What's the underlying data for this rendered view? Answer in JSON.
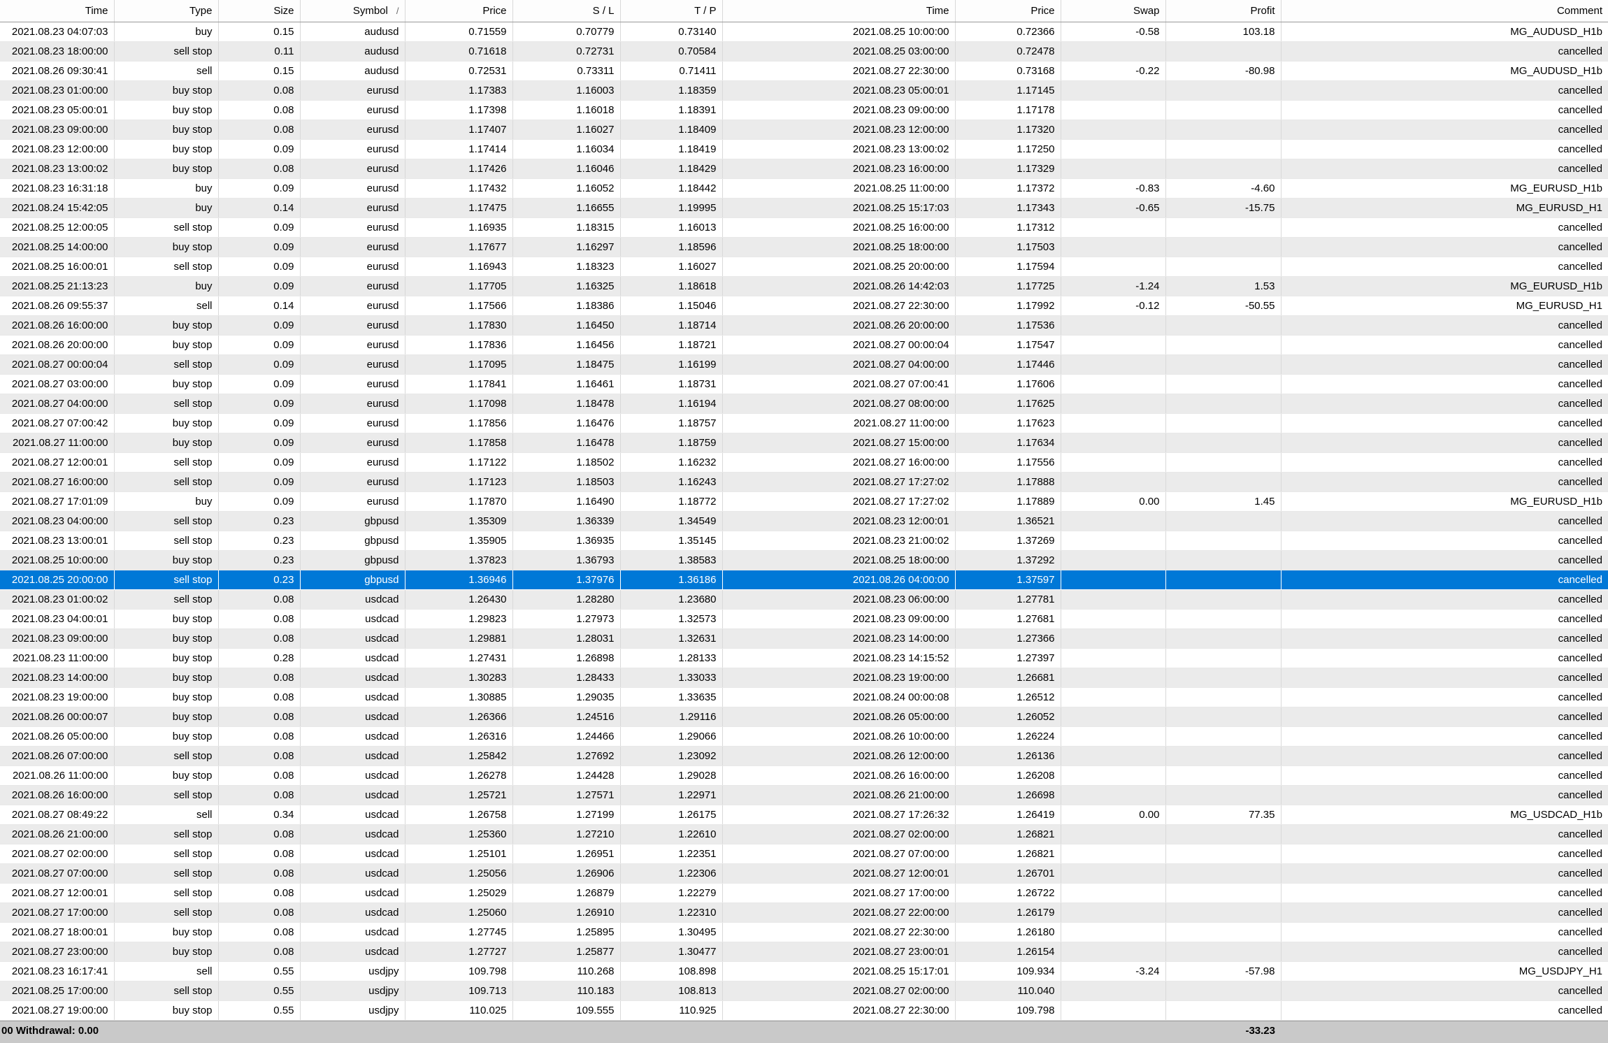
{
  "colors": {
    "selection_bg": "#0078d7",
    "stripe_bg": "#ebebeb",
    "statusbar_bg": "#c9c9c9"
  },
  "table": {
    "columns": [
      "Time",
      "Type",
      "Size",
      "Symbol",
      "Price",
      "S / L",
      "T / P",
      "Time",
      "Price",
      "Swap",
      "Profit",
      "Comment"
    ],
    "sort": {
      "column_index": 3,
      "icon": "/"
    },
    "selected_index": 28,
    "rows": [
      [
        "2021.08.23 04:07:03",
        "buy",
        "0.15",
        "audusd",
        "0.71559",
        "0.70779",
        "0.73140",
        "2021.08.25 10:00:00",
        "0.72366",
        "-0.58",
        "103.18",
        "MG_AUDUSD_H1b"
      ],
      [
        "2021.08.23 18:00:00",
        "sell stop",
        "0.11",
        "audusd",
        "0.71618",
        "0.72731",
        "0.70584",
        "2021.08.25 03:00:00",
        "0.72478",
        "",
        "",
        "cancelled"
      ],
      [
        "2021.08.26 09:30:41",
        "sell",
        "0.15",
        "audusd",
        "0.72531",
        "0.73311",
        "0.71411",
        "2021.08.27 22:30:00",
        "0.73168",
        "-0.22",
        "-80.98",
        "MG_AUDUSD_H1b"
      ],
      [
        "2021.08.23 01:00:00",
        "buy stop",
        "0.08",
        "eurusd",
        "1.17383",
        "1.16003",
        "1.18359",
        "2021.08.23 05:00:01",
        "1.17145",
        "",
        "",
        "cancelled"
      ],
      [
        "2021.08.23 05:00:01",
        "buy stop",
        "0.08",
        "eurusd",
        "1.17398",
        "1.16018",
        "1.18391",
        "2021.08.23 09:00:00",
        "1.17178",
        "",
        "",
        "cancelled"
      ],
      [
        "2021.08.23 09:00:00",
        "buy stop",
        "0.08",
        "eurusd",
        "1.17407",
        "1.16027",
        "1.18409",
        "2021.08.23 12:00:00",
        "1.17320",
        "",
        "",
        "cancelled"
      ],
      [
        "2021.08.23 12:00:00",
        "buy stop",
        "0.09",
        "eurusd",
        "1.17414",
        "1.16034",
        "1.18419",
        "2021.08.23 13:00:02",
        "1.17250",
        "",
        "",
        "cancelled"
      ],
      [
        "2021.08.23 13:00:02",
        "buy stop",
        "0.08",
        "eurusd",
        "1.17426",
        "1.16046",
        "1.18429",
        "2021.08.23 16:00:00",
        "1.17329",
        "",
        "",
        "cancelled"
      ],
      [
        "2021.08.23 16:31:18",
        "buy",
        "0.09",
        "eurusd",
        "1.17432",
        "1.16052",
        "1.18442",
        "2021.08.25 11:00:00",
        "1.17372",
        "-0.83",
        "-4.60",
        "MG_EURUSD_H1b"
      ],
      [
        "2021.08.24 15:42:05",
        "buy",
        "0.14",
        "eurusd",
        "1.17475",
        "1.16655",
        "1.19995",
        "2021.08.25 15:17:03",
        "1.17343",
        "-0.65",
        "-15.75",
        "MG_EURUSD_H1"
      ],
      [
        "2021.08.25 12:00:05",
        "sell stop",
        "0.09",
        "eurusd",
        "1.16935",
        "1.18315",
        "1.16013",
        "2021.08.25 16:00:00",
        "1.17312",
        "",
        "",
        "cancelled"
      ],
      [
        "2021.08.25 14:00:00",
        "buy stop",
        "0.09",
        "eurusd",
        "1.17677",
        "1.16297",
        "1.18596",
        "2021.08.25 18:00:00",
        "1.17503",
        "",
        "",
        "cancelled"
      ],
      [
        "2021.08.25 16:00:01",
        "sell stop",
        "0.09",
        "eurusd",
        "1.16943",
        "1.18323",
        "1.16027",
        "2021.08.25 20:00:00",
        "1.17594",
        "",
        "",
        "cancelled"
      ],
      [
        "2021.08.25 21:13:23",
        "buy",
        "0.09",
        "eurusd",
        "1.17705",
        "1.16325",
        "1.18618",
        "2021.08.26 14:42:03",
        "1.17725",
        "-1.24",
        "1.53",
        "MG_EURUSD_H1b"
      ],
      [
        "2021.08.26 09:55:37",
        "sell",
        "0.14",
        "eurusd",
        "1.17566",
        "1.18386",
        "1.15046",
        "2021.08.27 22:30:00",
        "1.17992",
        "-0.12",
        "-50.55",
        "MG_EURUSD_H1"
      ],
      [
        "2021.08.26 16:00:00",
        "buy stop",
        "0.09",
        "eurusd",
        "1.17830",
        "1.16450",
        "1.18714",
        "2021.08.26 20:00:00",
        "1.17536",
        "",
        "",
        "cancelled"
      ],
      [
        "2021.08.26 20:00:00",
        "buy stop",
        "0.09",
        "eurusd",
        "1.17836",
        "1.16456",
        "1.18721",
        "2021.08.27 00:00:04",
        "1.17547",
        "",
        "",
        "cancelled"
      ],
      [
        "2021.08.27 00:00:04",
        "sell stop",
        "0.09",
        "eurusd",
        "1.17095",
        "1.18475",
        "1.16199",
        "2021.08.27 04:00:00",
        "1.17446",
        "",
        "",
        "cancelled"
      ],
      [
        "2021.08.27 03:00:00",
        "buy stop",
        "0.09",
        "eurusd",
        "1.17841",
        "1.16461",
        "1.18731",
        "2021.08.27 07:00:41",
        "1.17606",
        "",
        "",
        "cancelled"
      ],
      [
        "2021.08.27 04:00:00",
        "sell stop",
        "0.09",
        "eurusd",
        "1.17098",
        "1.18478",
        "1.16194",
        "2021.08.27 08:00:00",
        "1.17625",
        "",
        "",
        "cancelled"
      ],
      [
        "2021.08.27 07:00:42",
        "buy stop",
        "0.09",
        "eurusd",
        "1.17856",
        "1.16476",
        "1.18757",
        "2021.08.27 11:00:00",
        "1.17623",
        "",
        "",
        "cancelled"
      ],
      [
        "2021.08.27 11:00:00",
        "buy stop",
        "0.09",
        "eurusd",
        "1.17858",
        "1.16478",
        "1.18759",
        "2021.08.27 15:00:00",
        "1.17634",
        "",
        "",
        "cancelled"
      ],
      [
        "2021.08.27 12:00:01",
        "sell stop",
        "0.09",
        "eurusd",
        "1.17122",
        "1.18502",
        "1.16232",
        "2021.08.27 16:00:00",
        "1.17556",
        "",
        "",
        "cancelled"
      ],
      [
        "2021.08.27 16:00:00",
        "sell stop",
        "0.09",
        "eurusd",
        "1.17123",
        "1.18503",
        "1.16243",
        "2021.08.27 17:27:02",
        "1.17888",
        "",
        "",
        "cancelled"
      ],
      [
        "2021.08.27 17:01:09",
        "buy",
        "0.09",
        "eurusd",
        "1.17870",
        "1.16490",
        "1.18772",
        "2021.08.27 17:27:02",
        "1.17889",
        "0.00",
        "1.45",
        "MG_EURUSD_H1b"
      ],
      [
        "2021.08.23 04:00:00",
        "sell stop",
        "0.23",
        "gbpusd",
        "1.35309",
        "1.36339",
        "1.34549",
        "2021.08.23 12:00:01",
        "1.36521",
        "",
        "",
        "cancelled"
      ],
      [
        "2021.08.23 13:00:01",
        "sell stop",
        "0.23",
        "gbpusd",
        "1.35905",
        "1.36935",
        "1.35145",
        "2021.08.23 21:00:02",
        "1.37269",
        "",
        "",
        "cancelled"
      ],
      [
        "2021.08.25 10:00:00",
        "buy stop",
        "0.23",
        "gbpusd",
        "1.37823",
        "1.36793",
        "1.38583",
        "2021.08.25 18:00:00",
        "1.37292",
        "",
        "",
        "cancelled"
      ],
      [
        "2021.08.25 20:00:00",
        "sell stop",
        "0.23",
        "gbpusd",
        "1.36946",
        "1.37976",
        "1.36186",
        "2021.08.26 04:00:00",
        "1.37597",
        "",
        "",
        "cancelled"
      ],
      [
        "2021.08.23 01:00:02",
        "sell stop",
        "0.08",
        "usdcad",
        "1.26430",
        "1.28280",
        "1.23680",
        "2021.08.23 06:00:00",
        "1.27781",
        "",
        "",
        "cancelled"
      ],
      [
        "2021.08.23 04:00:01",
        "buy stop",
        "0.08",
        "usdcad",
        "1.29823",
        "1.27973",
        "1.32573",
        "2021.08.23 09:00:00",
        "1.27681",
        "",
        "",
        "cancelled"
      ],
      [
        "2021.08.23 09:00:00",
        "buy stop",
        "0.08",
        "usdcad",
        "1.29881",
        "1.28031",
        "1.32631",
        "2021.08.23 14:00:00",
        "1.27366",
        "",
        "",
        "cancelled"
      ],
      [
        "2021.08.23 11:00:00",
        "buy stop",
        "0.28",
        "usdcad",
        "1.27431",
        "1.26898",
        "1.28133",
        "2021.08.23 14:15:52",
        "1.27397",
        "",
        "",
        "cancelled"
      ],
      [
        "2021.08.23 14:00:00",
        "buy stop",
        "0.08",
        "usdcad",
        "1.30283",
        "1.28433",
        "1.33033",
        "2021.08.23 19:00:00",
        "1.26681",
        "",
        "",
        "cancelled"
      ],
      [
        "2021.08.23 19:00:00",
        "buy stop",
        "0.08",
        "usdcad",
        "1.30885",
        "1.29035",
        "1.33635",
        "2021.08.24 00:00:08",
        "1.26512",
        "",
        "",
        "cancelled"
      ],
      [
        "2021.08.26 00:00:07",
        "buy stop",
        "0.08",
        "usdcad",
        "1.26366",
        "1.24516",
        "1.29116",
        "2021.08.26 05:00:00",
        "1.26052",
        "",
        "",
        "cancelled"
      ],
      [
        "2021.08.26 05:00:00",
        "buy stop",
        "0.08",
        "usdcad",
        "1.26316",
        "1.24466",
        "1.29066",
        "2021.08.26 10:00:00",
        "1.26224",
        "",
        "",
        "cancelled"
      ],
      [
        "2021.08.26 07:00:00",
        "sell stop",
        "0.08",
        "usdcad",
        "1.25842",
        "1.27692",
        "1.23092",
        "2021.08.26 12:00:00",
        "1.26136",
        "",
        "",
        "cancelled"
      ],
      [
        "2021.08.26 11:00:00",
        "buy stop",
        "0.08",
        "usdcad",
        "1.26278",
        "1.24428",
        "1.29028",
        "2021.08.26 16:00:00",
        "1.26208",
        "",
        "",
        "cancelled"
      ],
      [
        "2021.08.26 16:00:00",
        "sell stop",
        "0.08",
        "usdcad",
        "1.25721",
        "1.27571",
        "1.22971",
        "2021.08.26 21:00:00",
        "1.26698",
        "",
        "",
        "cancelled"
      ],
      [
        "2021.08.27 08:49:22",
        "sell",
        "0.34",
        "usdcad",
        "1.26758",
        "1.27199",
        "1.26175",
        "2021.08.27 17:26:32",
        "1.26419",
        "0.00",
        "77.35",
        "MG_USDCAD_H1b"
      ],
      [
        "2021.08.26 21:00:00",
        "sell stop",
        "0.08",
        "usdcad",
        "1.25360",
        "1.27210",
        "1.22610",
        "2021.08.27 02:00:00",
        "1.26821",
        "",
        "",
        "cancelled"
      ],
      [
        "2021.08.27 02:00:00",
        "sell stop",
        "0.08",
        "usdcad",
        "1.25101",
        "1.26951",
        "1.22351",
        "2021.08.27 07:00:00",
        "1.26821",
        "",
        "",
        "cancelled"
      ],
      [
        "2021.08.27 07:00:00",
        "sell stop",
        "0.08",
        "usdcad",
        "1.25056",
        "1.26906",
        "1.22306",
        "2021.08.27 12:00:01",
        "1.26701",
        "",
        "",
        "cancelled"
      ],
      [
        "2021.08.27 12:00:01",
        "sell stop",
        "0.08",
        "usdcad",
        "1.25029",
        "1.26879",
        "1.22279",
        "2021.08.27 17:00:00",
        "1.26722",
        "",
        "",
        "cancelled"
      ],
      [
        "2021.08.27 17:00:00",
        "sell stop",
        "0.08",
        "usdcad",
        "1.25060",
        "1.26910",
        "1.22310",
        "2021.08.27 22:00:00",
        "1.26179",
        "",
        "",
        "cancelled"
      ],
      [
        "2021.08.27 18:00:01",
        "buy stop",
        "0.08",
        "usdcad",
        "1.27745",
        "1.25895",
        "1.30495",
        "2021.08.27 22:30:00",
        "1.26180",
        "",
        "",
        "cancelled"
      ],
      [
        "2021.08.27 23:00:00",
        "buy stop",
        "0.08",
        "usdcad",
        "1.27727",
        "1.25877",
        "1.30477",
        "2021.08.27 23:00:01",
        "1.26154",
        "",
        "",
        "cancelled"
      ],
      [
        "2021.08.23 16:17:41",
        "sell",
        "0.55",
        "usdjpy",
        "109.798",
        "110.268",
        "108.898",
        "2021.08.25 15:17:01",
        "109.934",
        "-3.24",
        "-57.98",
        "MG_USDJPY_H1"
      ],
      [
        "2021.08.25 17:00:00",
        "sell stop",
        "0.55",
        "usdjpy",
        "109.713",
        "110.183",
        "108.813",
        "2021.08.27 02:00:00",
        "110.040",
        "",
        "",
        "cancelled"
      ],
      [
        "2021.08.27 19:00:00",
        "buy stop",
        "0.55",
        "usdjpy",
        "110.025",
        "109.555",
        "110.925",
        "2021.08.27 22:30:00",
        "109.798",
        "",
        "",
        "cancelled"
      ]
    ]
  },
  "footer": {
    "left_text": "00  Withdrawal: 0.00",
    "profit_total": "-33.23"
  }
}
